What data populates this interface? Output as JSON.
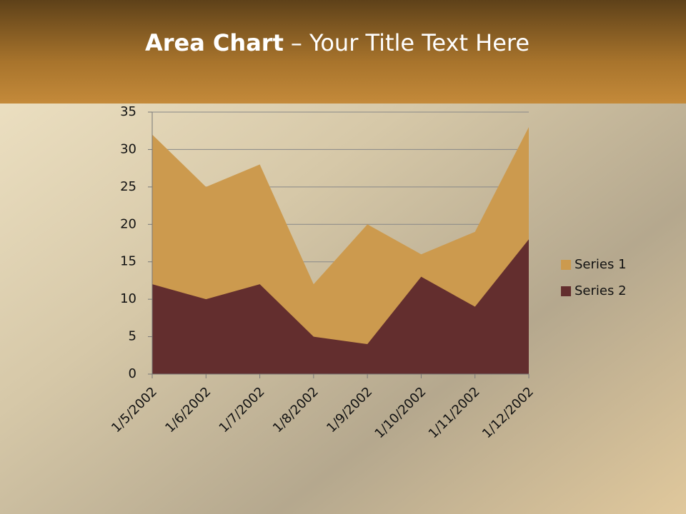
{
  "chart_data": {
    "type": "area",
    "title_parts": [
      "Area Chart",
      "– Your Title Text Here"
    ],
    "categories": [
      "1/5/2002",
      "1/6/2002",
      "1/7/2002",
      "1/8/2002",
      "1/9/2002",
      "1/10/2002",
      "1/11/2002",
      "1/12/2002"
    ],
    "series": [
      {
        "name": "Series 1",
        "color": "#cc9a4e",
        "values": [
          32,
          25,
          28,
          12,
          20,
          16,
          19,
          33
        ]
      },
      {
        "name": "Series 2",
        "color": "#632e2e",
        "values": [
          12,
          10,
          12,
          5,
          4,
          13,
          9,
          18
        ]
      }
    ],
    "ylim": [
      0,
      35
    ],
    "yticks": [
      0,
      5,
      10,
      15,
      20,
      25,
      30,
      35
    ],
    "grid": true,
    "legend": "right"
  }
}
